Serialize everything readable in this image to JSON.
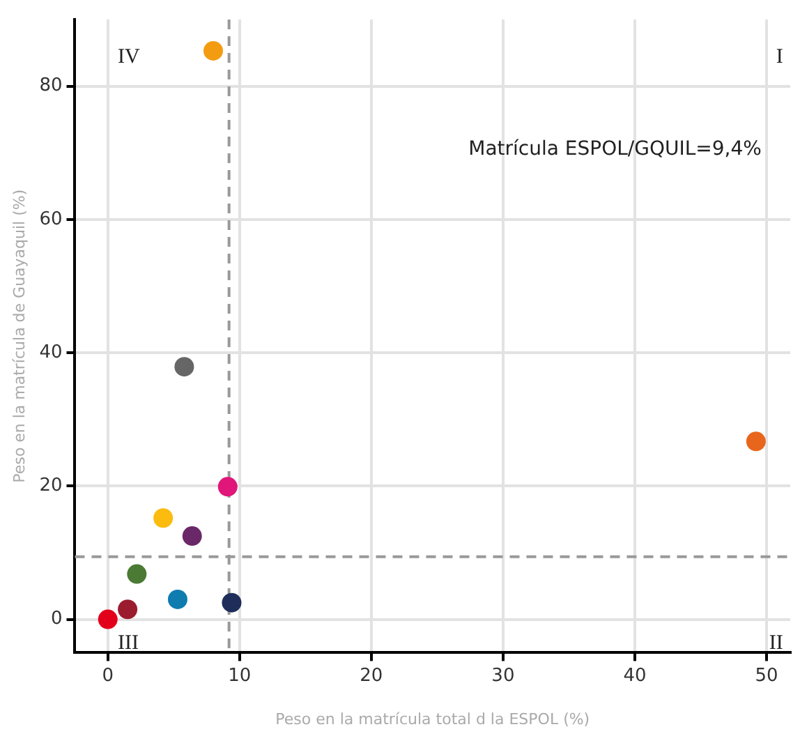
{
  "chart_data": {
    "type": "scatter",
    "xlabel": "Peso en la matrícula total d la ESPOL (%)",
    "ylabel": "Peso en la matrícula de Guayaquil (%)",
    "series": [
      {
        "x": [
          8.0,
          5.8,
          9.1,
          49.2,
          4.2,
          6.4,
          2.2,
          5.3,
          9.4,
          1.5,
          0
        ],
        "values": [
          85.3,
          37.9,
          19.9,
          26.7,
          15.2,
          12.5,
          6.8,
          3.0,
          2.5,
          1.5,
          0
        ],
        "colors": [
          "#f39c12",
          "#666666",
          "#e0167a",
          "#e8661c",
          "#fbbc0f",
          "#6b2869",
          "#4a7a34",
          "#0f7cb0",
          "#1f2d5a",
          "#9b1c2e",
          "#e3001b"
        ]
      }
    ],
    "xlim": [
      -2.5,
      51.8
    ],
    "xticks": [
      0,
      10,
      20,
      30,
      40,
      50
    ],
    "ylim": [
      -5,
      90
    ],
    "yticks": [
      0,
      20,
      40,
      60,
      80
    ],
    "ref_lines": [
      {
        "axis": "x",
        "value": 9.2,
        "color": "#999999",
        "line_style": "dashed"
      },
      {
        "axis": "y",
        "value": 9.4,
        "color": "#999999",
        "line_style": "dashed"
      }
    ],
    "annotations": [
      "IV",
      "I",
      "III",
      "II",
      "Matrícula ESPOL/GQUIL=9,4%"
    ],
    "grid": true,
    "legend": false,
    "marker": "circle"
  }
}
